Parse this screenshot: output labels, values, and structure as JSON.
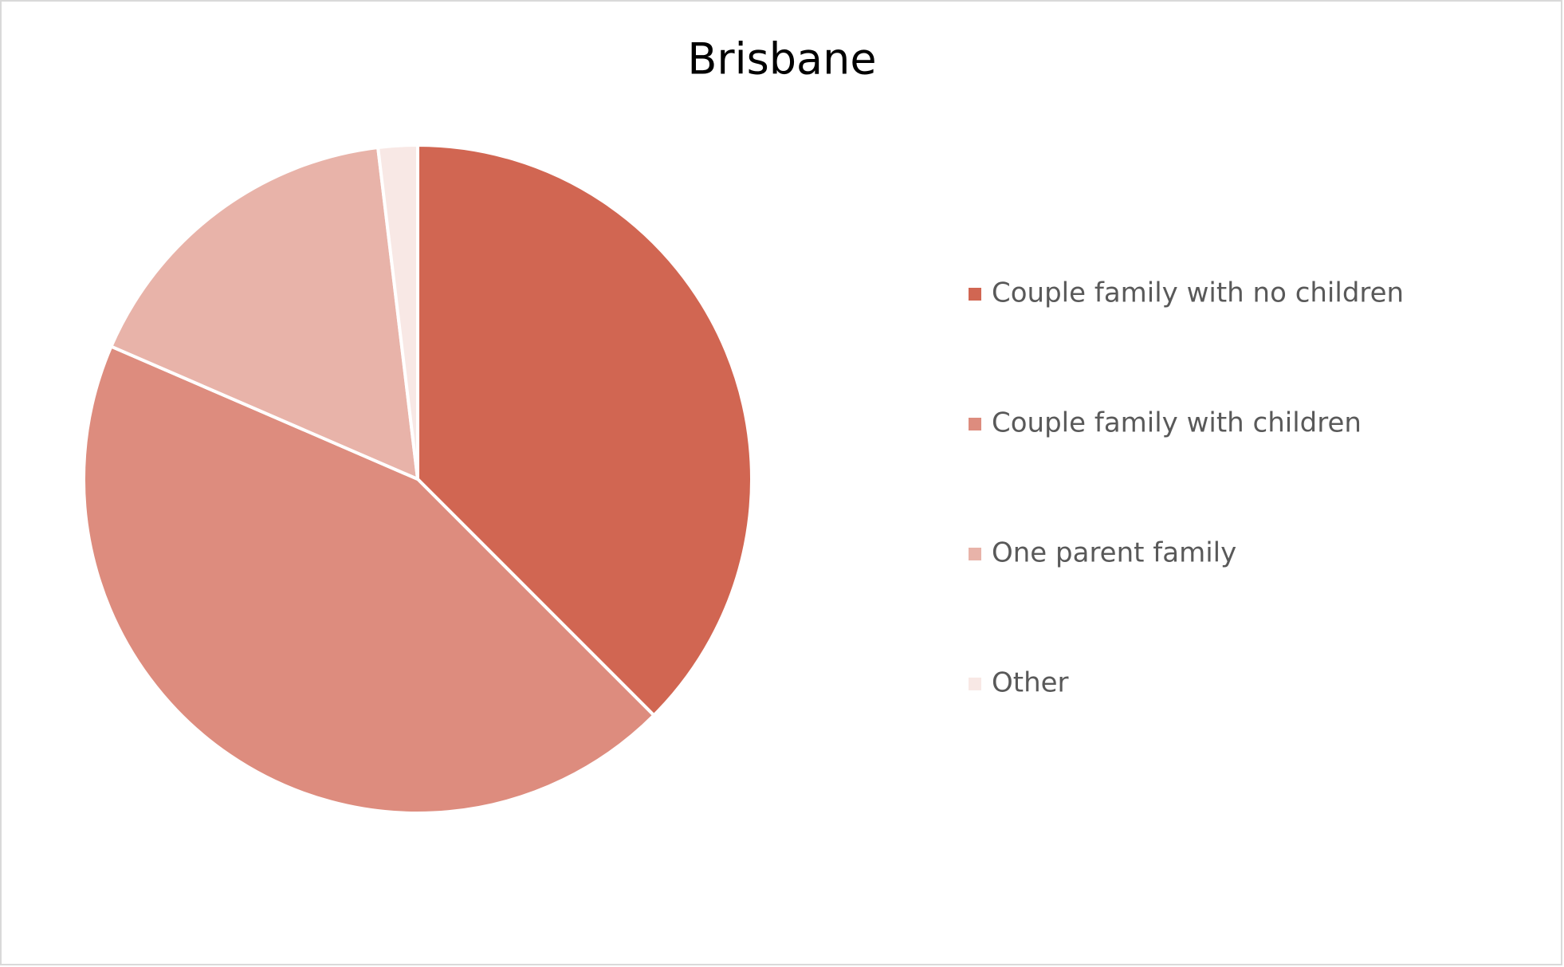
{
  "chart_data": {
    "type": "pie",
    "title": "Brisbane",
    "categories": [
      "Couple family with no children",
      "Couple family with children",
      "One parent family",
      "Other"
    ],
    "values": [
      37.5,
      44.0,
      16.6,
      1.9
    ],
    "colors": [
      "#d16652",
      "#dd8c7e",
      "#e8b3a9",
      "#f8e8e5"
    ],
    "legend": "right"
  }
}
